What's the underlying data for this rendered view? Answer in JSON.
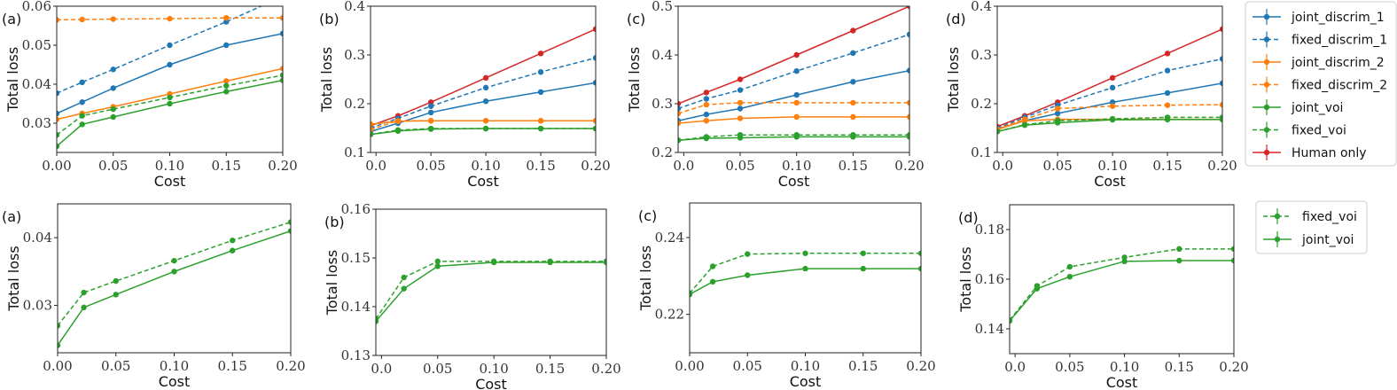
{
  "figure": {
    "xlabel": "Cost",
    "ylabel": "Total loss"
  },
  "legends": [
    {
      "entries": [
        "joint_discrim_1",
        "fixed_discrim_1",
        "joint_discrim_2",
        "fixed_discrim_2",
        "joint_voi",
        "fixed_voi",
        "Human only"
      ]
    },
    {
      "entries": [
        "fixed_voi",
        "joint_voi"
      ]
    }
  ],
  "styles": {
    "joint_discrim_1": {
      "color": "#1f77b4",
      "dashed": false
    },
    "fixed_discrim_1": {
      "color": "#1f77b4",
      "dashed": true
    },
    "joint_discrim_2": {
      "color": "#ff7f0e",
      "dashed": false
    },
    "fixed_discrim_2": {
      "color": "#ff7f0e",
      "dashed": true
    },
    "joint_voi": {
      "color": "#2ca02c",
      "dashed": false
    },
    "fixed_voi": {
      "color": "#2ca02c",
      "dashed": true
    },
    "Human only": {
      "color": "#d62728",
      "dashed": false
    }
  },
  "chart_data": [
    {
      "type": "line",
      "panel": "(a)",
      "xlabel": "Cost",
      "ylabel": "Total loss",
      "xlim": [
        0,
        0.2
      ],
      "ylim": [
        0.0225,
        0.06
      ],
      "xticks": [
        0,
        0.05,
        0.1,
        0.15,
        0.2
      ],
      "xtick_labels": [
        "0.00",
        "0.05",
        "0.10",
        "0.15",
        "0.20"
      ],
      "yticks": [
        0.03,
        0.04,
        0.05,
        0.06
      ],
      "ytick_labels": [
        "0.03",
        "0.04",
        "0.05",
        "0.06"
      ],
      "x": [
        0,
        0.0225,
        0.05,
        0.1,
        0.15,
        0.2
      ],
      "series": [
        {
          "name": "joint_discrim_1",
          "values": [
            0.0325,
            0.0354,
            0.039,
            0.045,
            0.05,
            0.053
          ]
        },
        {
          "name": "fixed_discrim_1",
          "values": [
            0.0377,
            0.0405,
            0.0438,
            0.05,
            0.056,
            0.0625
          ]
        },
        {
          "name": "joint_discrim_2",
          "values": [
            0.031,
            0.0325,
            0.0342,
            0.0375,
            0.0408,
            0.044
          ]
        },
        {
          "name": "fixed_discrim_2",
          "values": [
            0.0565,
            0.0566,
            0.0567,
            0.0568,
            0.057,
            0.057
          ]
        },
        {
          "name": "joint_voi",
          "values": [
            0.0241,
            0.0297,
            0.0316,
            0.035,
            0.0381,
            0.041
          ]
        },
        {
          "name": "fixed_voi",
          "values": [
            0.027,
            0.0319,
            0.0336,
            0.0366,
            0.0396,
            0.0423
          ]
        }
      ]
    },
    {
      "type": "line",
      "panel": "(b)",
      "xlabel": "Cost",
      "ylabel": "Total loss",
      "xlim": [
        -0.005,
        0.2
      ],
      "ylim": [
        0.1,
        0.4
      ],
      "xticks": [
        0,
        0.05,
        0.1,
        0.15,
        0.2
      ],
      "xtick_labels": [
        "0.0",
        "0.05",
        "0.10",
        "0.15",
        "0.20"
      ],
      "yticks": [
        0.1,
        0.2,
        0.3,
        0.4
      ],
      "ytick_labels": [
        "0.1",
        "0.2",
        "0.3",
        "0.4"
      ],
      "x": [
        -0.005,
        0.02,
        0.05,
        0.1,
        0.15,
        0.2
      ],
      "series": [
        {
          "name": "Human only",
          "values": [
            0.155,
            0.175,
            0.203,
            0.253,
            0.303,
            0.353
          ]
        },
        {
          "name": "fixed_discrim_1",
          "values": [
            0.15,
            0.17,
            0.195,
            0.233,
            0.265,
            0.294
          ]
        },
        {
          "name": "joint_discrim_1",
          "values": [
            0.143,
            0.16,
            0.182,
            0.205,
            0.224,
            0.243
          ]
        },
        {
          "name": "joint_discrim_2",
          "values": [
            0.158,
            0.164,
            0.165,
            0.165,
            0.165,
            0.165
          ]
        },
        {
          "name": "fixed_discrim_2",
          "values": [
            0.147,
            0.165,
            0.165,
            0.165,
            0.165,
            0.165
          ]
        },
        {
          "name": "joint_voi",
          "values": [
            0.137,
            0.144,
            0.148,
            0.149,
            0.149,
            0.149
          ]
        },
        {
          "name": "fixed_voi",
          "values": [
            0.137,
            0.146,
            0.149,
            0.149,
            0.149,
            0.149
          ]
        }
      ]
    },
    {
      "type": "line",
      "panel": "(c)",
      "xlabel": "Cost",
      "ylabel": "Total loss",
      "xlim": [
        -0.005,
        0.2
      ],
      "ylim": [
        0.2,
        0.5
      ],
      "xticks": [
        0,
        0.05,
        0.1,
        0.15,
        0.2
      ],
      "xtick_labels": [
        "0.0",
        "0.05",
        "0.10",
        "0.15",
        "0.20"
      ],
      "yticks": [
        0.2,
        0.3,
        0.4,
        0.5
      ],
      "ytick_labels": [
        "0.2",
        "0.3",
        "0.4",
        "0.5"
      ],
      "x": [
        -0.005,
        0.02,
        0.05,
        0.1,
        0.15,
        0.2
      ],
      "series": [
        {
          "name": "Human only",
          "values": [
            0.3,
            0.323,
            0.35,
            0.4,
            0.45,
            0.5
          ]
        },
        {
          "name": "fixed_discrim_1",
          "values": [
            0.29,
            0.31,
            0.328,
            0.367,
            0.404,
            0.442
          ]
        },
        {
          "name": "joint_discrim_1",
          "values": [
            0.265,
            0.278,
            0.29,
            0.318,
            0.345,
            0.368
          ]
        },
        {
          "name": "fixed_discrim_2",
          "values": [
            0.28,
            0.298,
            0.302,
            0.302,
            0.302,
            0.302
          ]
        },
        {
          "name": "joint_discrim_2",
          "values": [
            0.26,
            0.265,
            0.27,
            0.273,
            0.273,
            0.273
          ]
        },
        {
          "name": "fixed_voi",
          "values": [
            0.225,
            0.232,
            0.236,
            0.236,
            0.236,
            0.236
          ]
        },
        {
          "name": "joint_voi",
          "values": [
            0.225,
            0.229,
            0.23,
            0.232,
            0.232,
            0.232
          ]
        }
      ]
    },
    {
      "type": "line",
      "panel": "(d)",
      "xlabel": "Cost",
      "ylabel": "Total loss",
      "xlim": [
        -0.005,
        0.2
      ],
      "ylim": [
        0.1,
        0.4
      ],
      "xticks": [
        0,
        0.05,
        0.1,
        0.15,
        0.2
      ],
      "xtick_labels": [
        "0.0",
        "0.05",
        "0.10",
        "0.15",
        "0.20"
      ],
      "yticks": [
        0.1,
        0.2,
        0.3,
        0.4
      ],
      "ytick_labels": [
        "0.1",
        "0.2",
        "0.3",
        "0.4"
      ],
      "x": [
        -0.005,
        0.02,
        0.05,
        0.1,
        0.15,
        0.2
      ],
      "series": [
        {
          "name": "Human only",
          "values": [
            0.153,
            0.175,
            0.203,
            0.253,
            0.303,
            0.353
          ]
        },
        {
          "name": "fixed_discrim_1",
          "values": [
            0.15,
            0.172,
            0.197,
            0.233,
            0.268,
            0.292
          ]
        },
        {
          "name": "joint_discrim_1",
          "values": [
            0.148,
            0.165,
            0.18,
            0.203,
            0.222,
            0.242
          ]
        },
        {
          "name": "fixed_discrim_2",
          "values": [
            0.148,
            0.168,
            0.19,
            0.195,
            0.197,
            0.198
          ]
        },
        {
          "name": "joint_discrim_2",
          "values": [
            0.147,
            0.165,
            0.168,
            0.168,
            0.168,
            0.168
          ]
        },
        {
          "name": "fixed_voi",
          "values": [
            0.143,
            0.157,
            0.165,
            0.169,
            0.172,
            0.172
          ]
        },
        {
          "name": "joint_voi",
          "values": [
            0.143,
            0.156,
            0.161,
            0.167,
            0.1675,
            0.1675
          ]
        }
      ]
    },
    {
      "type": "line",
      "panel": "(a)",
      "xlabel": "Cost",
      "ylabel": "Total loss",
      "xlim": [
        0,
        0.2
      ],
      "ylim": [
        0.023,
        0.045
      ],
      "xticks": [
        0,
        0.05,
        0.1,
        0.15,
        0.2
      ],
      "xtick_labels": [
        "0.00",
        "0.05",
        "0.10",
        "0.15",
        "0.20"
      ],
      "yticks": [
        0.03,
        0.04
      ],
      "ytick_labels": [
        "0.03",
        "0.04"
      ],
      "x": [
        0,
        0.0225,
        0.05,
        0.1,
        0.15,
        0.2
      ],
      "series": [
        {
          "name": "fixed_voi",
          "values": [
            0.027,
            0.0319,
            0.0336,
            0.0366,
            0.0396,
            0.0423
          ]
        },
        {
          "name": "joint_voi",
          "values": [
            0.0241,
            0.0297,
            0.0316,
            0.035,
            0.0381,
            0.041
          ]
        }
      ]
    },
    {
      "type": "line",
      "panel": "(b)",
      "xlabel": "Cost",
      "ylabel": "Total loss",
      "xlim": [
        -0.005,
        0.2
      ],
      "ylim": [
        0.13,
        0.16
      ],
      "xticks": [
        0,
        0.05,
        0.1,
        0.15,
        0.2
      ],
      "xtick_labels": [
        "0.0",
        "0.05",
        "0.10",
        "0.15",
        "0.20"
      ],
      "yticks": [
        0.13,
        0.14,
        0.15,
        0.16
      ],
      "ytick_labels": [
        "0.13",
        "0.14",
        "0.15",
        "0.16"
      ],
      "x": [
        -0.005,
        0.02,
        0.05,
        0.1,
        0.15,
        0.2
      ],
      "series": [
        {
          "name": "fixed_voi",
          "values": [
            0.1375,
            0.146,
            0.1493,
            0.1493,
            0.1493,
            0.1493
          ]
        },
        {
          "name": "joint_voi",
          "values": [
            0.137,
            0.1437,
            0.1483,
            0.1491,
            0.1491,
            0.1491
          ]
        }
      ]
    },
    {
      "type": "line",
      "panel": "(c)",
      "xlabel": "Cost",
      "ylabel": "Total loss",
      "xlim": [
        0,
        0.2
      ],
      "ylim": [
        0.21,
        0.249
      ],
      "xticks": [
        0,
        0.05,
        0.1,
        0.15,
        0.2
      ],
      "xtick_labels": [
        "0.00",
        "0.05",
        "0.10",
        "0.15",
        "0.20"
      ],
      "yticks": [
        0.22,
        0.24
      ],
      "ytick_labels": [
        "0.22",
        "0.24"
      ],
      "x": [
        0,
        0.02,
        0.05,
        0.1,
        0.15,
        0.2
      ],
      "series": [
        {
          "name": "fixed_voi",
          "values": [
            0.2255,
            0.2325,
            0.2357,
            0.2359,
            0.2359,
            0.2359
          ]
        },
        {
          "name": "joint_voi",
          "values": [
            0.2252,
            0.2285,
            0.2302,
            0.2319,
            0.2319,
            0.2319
          ]
        }
      ]
    },
    {
      "type": "line",
      "panel": "(d)",
      "xlabel": "Cost",
      "ylabel": "Total loss",
      "xlim": [
        -0.005,
        0.2
      ],
      "ylim": [
        0.13,
        0.19
      ],
      "xticks": [
        0,
        0.05,
        0.1,
        0.15,
        0.2
      ],
      "xtick_labels": [
        "0.0",
        "0.05",
        "0.10",
        "0.15",
        "0.20"
      ],
      "yticks": [
        0.14,
        0.16,
        0.18
      ],
      "ytick_labels": [
        "0.14",
        "0.16",
        "0.18"
      ],
      "x": [
        -0.005,
        0.02,
        0.05,
        0.1,
        0.15,
        0.2
      ],
      "series": [
        {
          "name": "fixed_voi",
          "values": [
            0.1435,
            0.1573,
            0.165,
            0.1688,
            0.1722,
            0.1722
          ]
        },
        {
          "name": "joint_voi",
          "values": [
            0.1432,
            0.1562,
            0.161,
            0.1672,
            0.1675,
            0.1675
          ]
        }
      ]
    }
  ]
}
